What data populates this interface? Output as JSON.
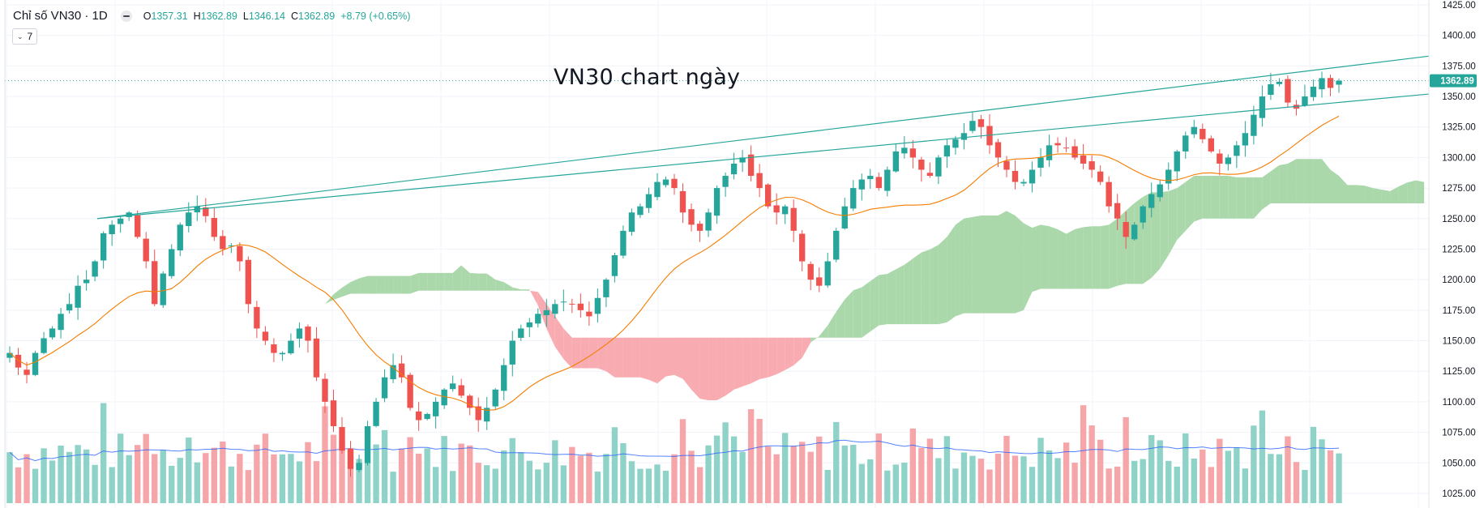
{
  "header": {
    "symbol": "Chỉ số VN30 · 1D",
    "open_label": "O",
    "open": "1357.31",
    "high_label": "H",
    "high": "1362.89",
    "low_label": "L",
    "low": "1346.14",
    "close_label": "C",
    "close": "1362.89",
    "change": "+8.79 (+0.65%)",
    "indicator_count": "7",
    "eye_icon": "eye-toggle-icon"
  },
  "colors": {
    "up": "#26a69a",
    "down": "#ef5350",
    "cloud_bull": "#a5d6a7",
    "cloud_bear": "#f8a8ad",
    "ma_line": "#f57c00",
    "volume_ma": "#2962ff",
    "trendline": "#26a69a",
    "price_label": "#26a69a"
  },
  "chart_data": {
    "type": "candlestick",
    "title": "VN30 chart ngày",
    "timeframe": "1D",
    "y_axis": {
      "position": "right",
      "range": [
        1017,
        1425
      ],
      "ticks": [
        "1425.00",
        "1400.00",
        "1375.00",
        "1350.00",
        "1325.00",
        "1300.00",
        "1275.00",
        "1250.00",
        "1225.00",
        "1200.00",
        "1175.00",
        "1150.00",
        "1125.00",
        "1100.00",
        "1075.00",
        "1050.00",
        "1025.00"
      ]
    },
    "last_price": "1362.89",
    "close_series_approx": [
      1140,
      1128,
      1122,
      1140,
      1152,
      1160,
      1172,
      1180,
      1195,
      1200,
      1215,
      1238,
      1245,
      1250,
      1255,
      1235,
      1215,
      1180,
      1205,
      1225,
      1245,
      1255,
      1260,
      1252,
      1235,
      1225,
      1228,
      1215,
      1180,
      1160,
      1150,
      1140,
      1140,
      1150,
      1160,
      1150,
      1120,
      1100,
      1080,
      1060,
      1045,
      1050,
      1080,
      1100,
      1120,
      1130,
      1120,
      1095,
      1085,
      1090,
      1100,
      1110,
      1115,
      1105,
      1095,
      1085,
      1095,
      1110,
      1130,
      1150,
      1160,
      1165,
      1172,
      1175,
      1180,
      1182,
      1180,
      1175,
      1170,
      1185,
      1200,
      1220,
      1240,
      1255,
      1260,
      1270,
      1280,
      1282,
      1275,
      1255,
      1245,
      1240,
      1255,
      1275,
      1285,
      1295,
      1300,
      1285,
      1275,
      1260,
      1255,
      1260,
      1240,
      1215,
      1200,
      1195,
      1215,
      1240,
      1260,
      1275,
      1282,
      1285,
      1275,
      1290,
      1305,
      1308,
      1300,
      1290,
      1285,
      1300,
      1310,
      1315,
      1320,
      1330,
      1325,
      1310,
      1300,
      1290,
      1280,
      1280,
      1290,
      1300,
      1310,
      1310,
      1308,
      1300,
      1295,
      1290,
      1280,
      1260,
      1250,
      1235,
      1245,
      1260,
      1270,
      1278,
      1290,
      1305,
      1318,
      1325,
      1315,
      1305,
      1295,
      1300,
      1310,
      1320,
      1335,
      1350,
      1360,
      1362,
      1345,
      1340,
      1350,
      1358,
      1365,
      1357,
      1362.89
    ],
    "series": [
      {
        "name": "MA",
        "type": "line"
      },
      {
        "name": "Ichimoku cloud",
        "type": "area"
      },
      {
        "name": "Volume",
        "type": "bar"
      },
      {
        "name": "Volume MA",
        "type": "line"
      }
    ],
    "trendlines": [
      {
        "name": "upper",
        "from": 1250,
        "to": 1383
      },
      {
        "name": "lower",
        "from": 1250,
        "to": 1352
      }
    ]
  }
}
